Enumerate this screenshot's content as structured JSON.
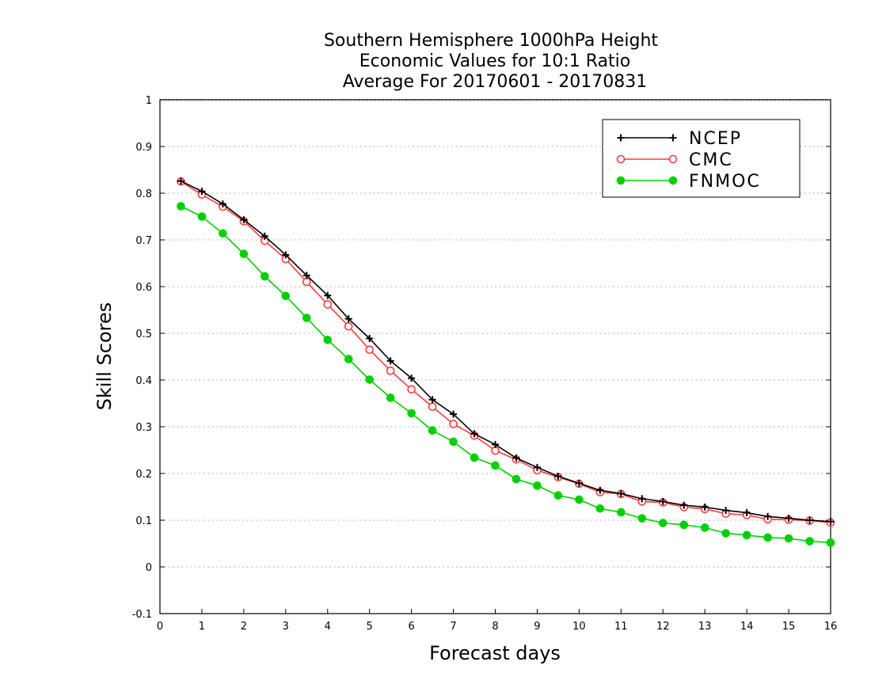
{
  "chart_data": {
    "type": "line",
    "title_lines": [
      "Southern Hemisphere 1000hPa Height",
      "Economic Values for 10:1 Ratio",
      "Average For 20170601 - 20170831"
    ],
    "xlabel": "Forecast days",
    "ylabel": "Skill Scores",
    "xlim": [
      0,
      16
    ],
    "ylim": [
      -0.1,
      1
    ],
    "x_ticks": [
      0,
      1,
      2,
      3,
      4,
      5,
      6,
      7,
      8,
      9,
      10,
      11,
      12,
      13,
      14,
      15,
      16
    ],
    "y_ticks": [
      -0.1,
      0,
      0.1,
      0.2,
      0.3,
      0.4,
      0.5,
      0.6,
      0.7,
      0.8,
      0.9,
      1
    ],
    "y_tick_labels": [
      "-0.1",
      "0",
      "0.1",
      "0.2",
      "0.3",
      "0.4",
      "0.5",
      "0.6",
      "0.7",
      "0.8",
      "0.9",
      "1"
    ],
    "grid": "horizontal-dotted",
    "legend_position": "top-right",
    "x": [
      0.5,
      1,
      1.5,
      2,
      2.5,
      3,
      3.5,
      4,
      4.5,
      5,
      5.5,
      6,
      6.5,
      7,
      7.5,
      8,
      8.5,
      9,
      9.5,
      10,
      10.5,
      11,
      11.5,
      12,
      12.5,
      13,
      13.5,
      14,
      14.5,
      15,
      15.5,
      16
    ],
    "series": [
      {
        "name": "NCEP",
        "color": "#000000",
        "marker": "plus",
        "values": [
          0.826,
          0.804,
          0.777,
          0.743,
          0.708,
          0.668,
          0.624,
          0.581,
          0.531,
          0.489,
          0.441,
          0.404,
          0.358,
          0.327,
          0.285,
          0.262,
          0.233,
          0.213,
          0.194,
          0.179,
          0.164,
          0.157,
          0.146,
          0.14,
          0.132,
          0.128,
          0.121,
          0.116,
          0.108,
          0.104,
          0.1,
          0.097
        ]
      },
      {
        "name": "CMC",
        "color": "#ff3b3b",
        "marker": "open-circle",
        "values": [
          0.825,
          0.797,
          0.771,
          0.74,
          0.698,
          0.659,
          0.61,
          0.562,
          0.515,
          0.465,
          0.42,
          0.38,
          0.343,
          0.306,
          0.281,
          0.249,
          0.23,
          0.207,
          0.192,
          0.178,
          0.16,
          0.156,
          0.14,
          0.138,
          0.128,
          0.124,
          0.114,
          0.111,
          0.102,
          0.101,
          0.099,
          0.095
        ]
      },
      {
        "name": "FNMOC",
        "color": "#00d000",
        "marker": "filled-circle",
        "values": [
          0.772,
          0.75,
          0.714,
          0.67,
          0.622,
          0.58,
          0.533,
          0.486,
          0.445,
          0.401,
          0.362,
          0.329,
          0.292,
          0.268,
          0.234,
          0.217,
          0.188,
          0.174,
          0.153,
          0.144,
          0.125,
          0.117,
          0.104,
          0.094,
          0.09,
          0.084,
          0.072,
          0.068,
          0.063,
          0.061,
          0.055,
          0.052
        ]
      }
    ]
  }
}
